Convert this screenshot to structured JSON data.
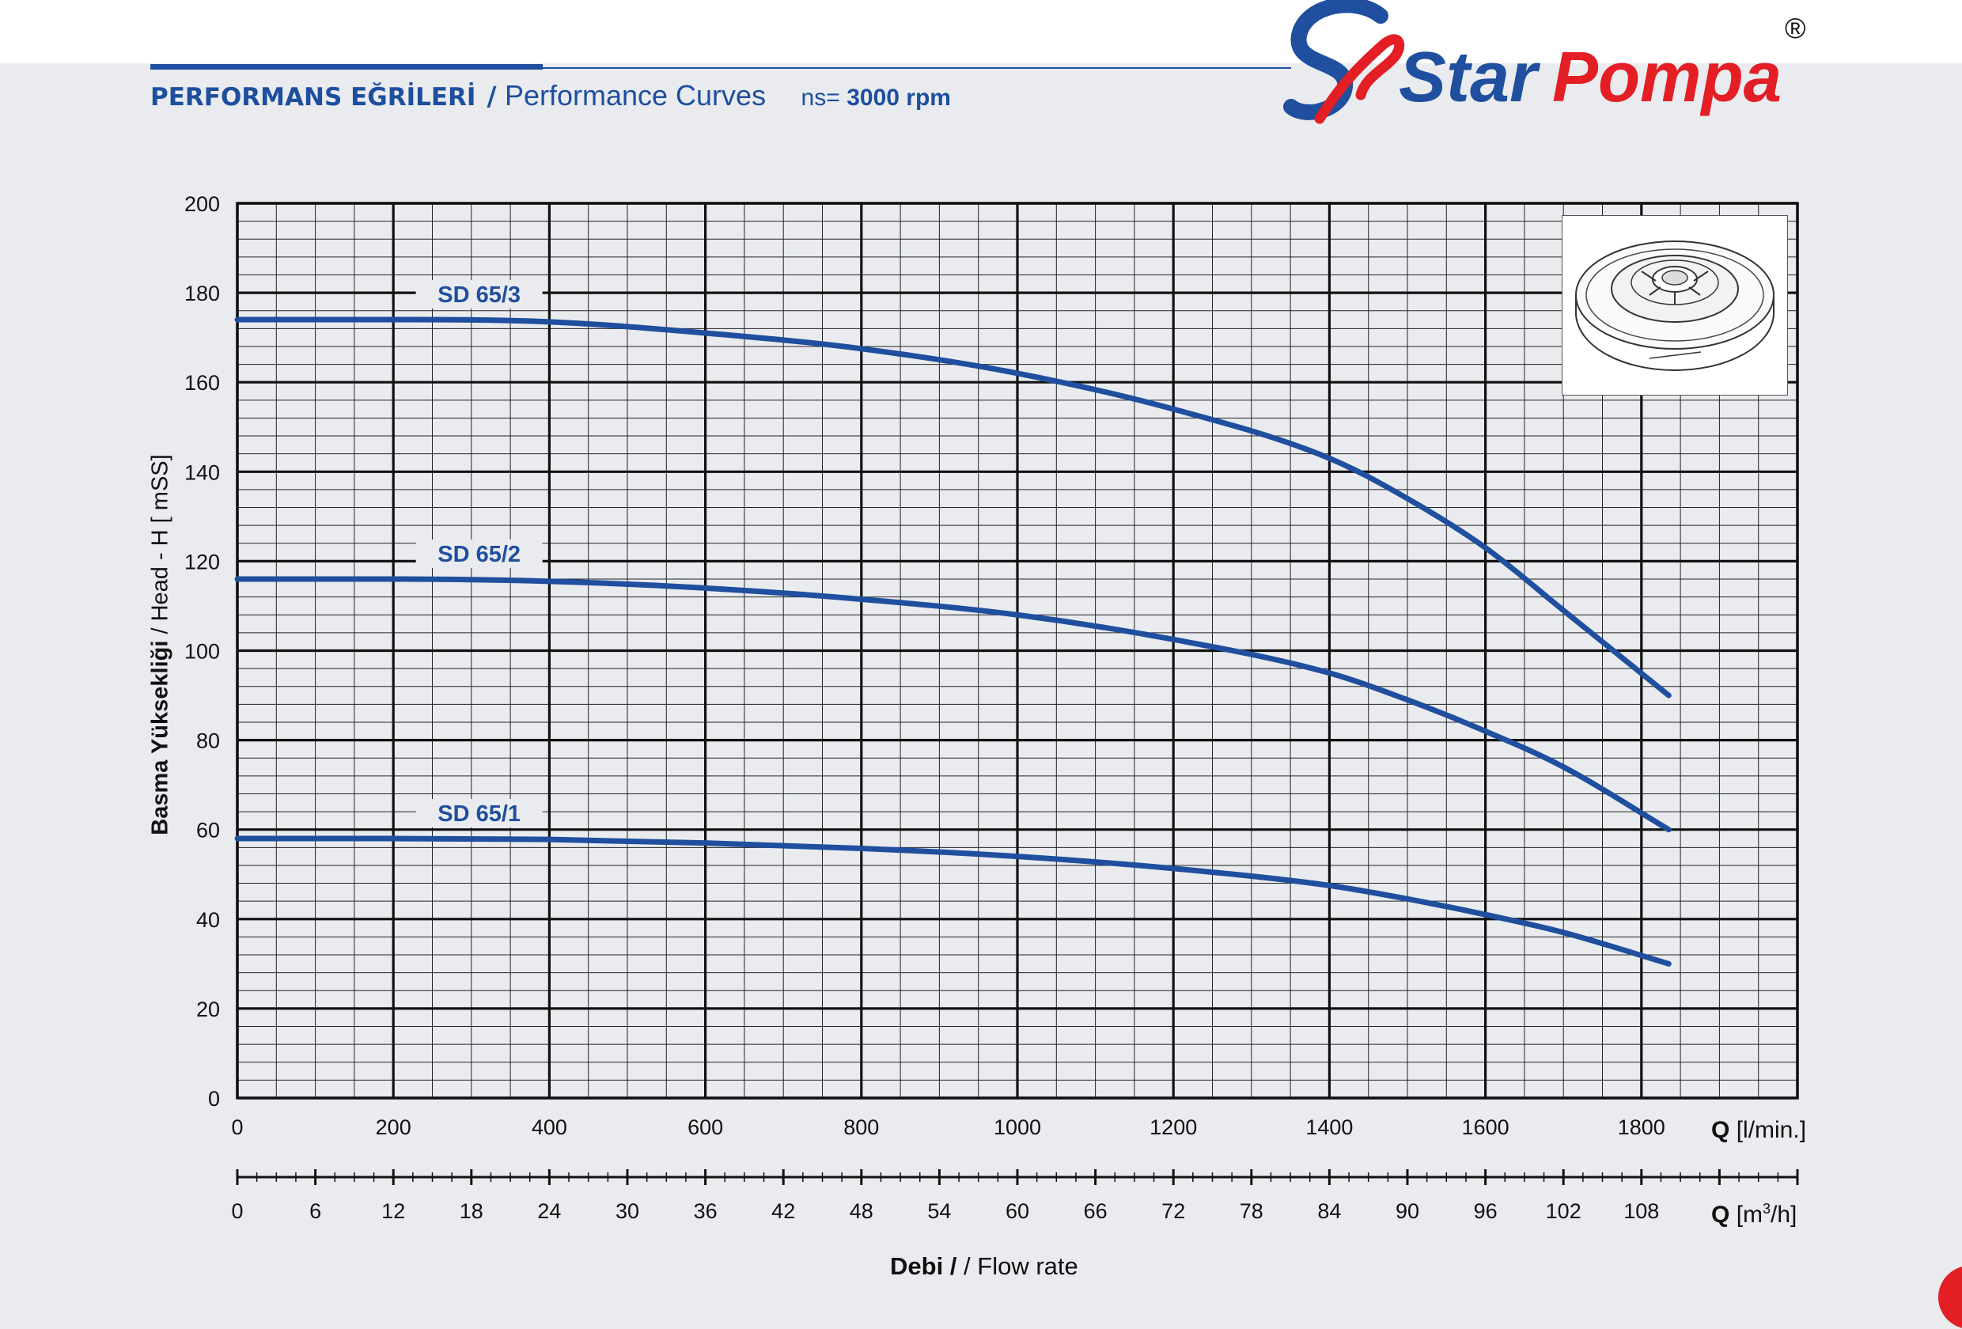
{
  "header": {
    "title_tr": "PERFORMANS EĞRİLERİ",
    "title_separator": "/",
    "title_en": "Performance Curves",
    "speed_label": "ns=",
    "speed_value": "3000 rpm"
  },
  "brand": {
    "name_part1": "Star",
    "name_part2": "Pompa",
    "registered": "®",
    "colors": {
      "blue": "#1f4f9e",
      "red": "#e31e24"
    }
  },
  "chart_data": {
    "type": "line",
    "title": "",
    "ylabel_bold": "Basma Yüksekliği",
    "ylabel_rest": " / Head - H [ mSS]",
    "xlabel_bold": "Debi",
    "xlabel_rest": " / Flow rate",
    "x_unit_primary": {
      "symbol": "Q",
      "unit": "[l/min.]"
    },
    "x_unit_secondary": {
      "symbol": "Q",
      "unit_pre": "[m",
      "unit_sup": "3",
      "unit_post": "/h]"
    },
    "xlim": [
      0,
      2000
    ],
    "ylim": [
      0,
      200
    ],
    "grid": true,
    "y_ticks": [
      0,
      20,
      40,
      60,
      80,
      100,
      120,
      140,
      160,
      180,
      200
    ],
    "x_ticks": [
      0,
      200,
      400,
      600,
      800,
      1000,
      1200,
      1400,
      1600,
      1800
    ],
    "x2_ticks": [
      0,
      6,
      12,
      18,
      24,
      30,
      36,
      42,
      48,
      54,
      60,
      66,
      72,
      78,
      84,
      90,
      96,
      102,
      108
    ],
    "line_color": "#1f4f9e",
    "series": [
      {
        "name": "SD 65/3",
        "x": [
          0,
          200,
          400,
          600,
          800,
          1000,
          1200,
          1400,
          1500,
          1600,
          1700,
          1835
        ],
        "y": [
          174,
          174,
          173.5,
          171,
          167.5,
          162,
          154,
          143,
          134,
          123,
          109,
          90
        ]
      },
      {
        "name": "SD 65/2",
        "x": [
          0,
          200,
          400,
          600,
          800,
          1000,
          1200,
          1400,
          1500,
          1600,
          1700,
          1835
        ],
        "y": [
          116,
          116,
          115.5,
          114,
          111.5,
          108,
          102.5,
          95,
          89,
          82,
          74,
          60
        ]
      },
      {
        "name": "SD 65/1",
        "x": [
          0,
          200,
          400,
          600,
          800,
          1000,
          1200,
          1400,
          1500,
          1600,
          1700,
          1835
        ],
        "y": [
          58,
          58,
          57.8,
          57,
          55.8,
          54,
          51.3,
          47.5,
          44.5,
          41,
          37,
          30
        ]
      }
    ]
  }
}
